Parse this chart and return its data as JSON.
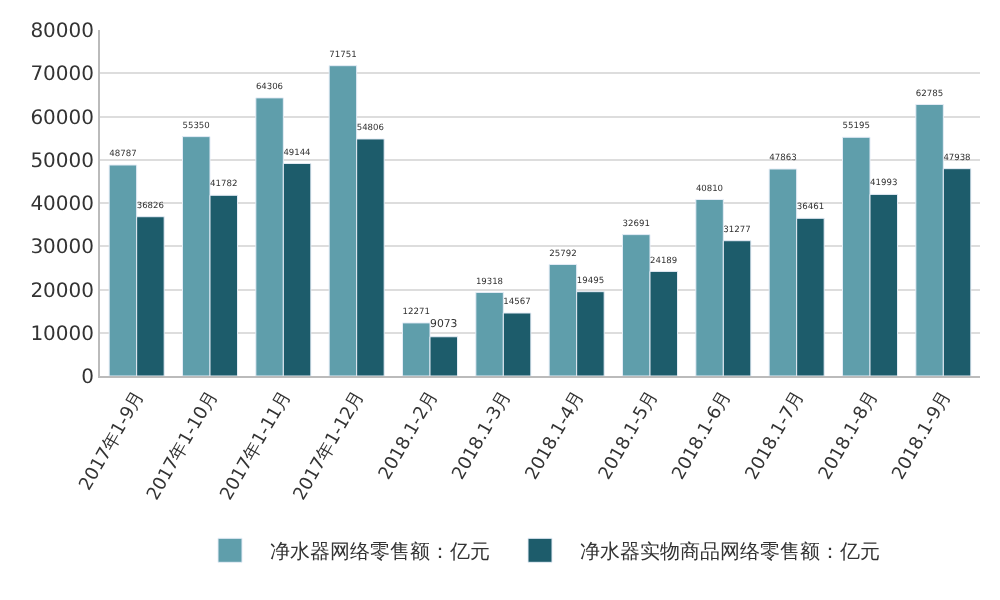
{
  "chart_data": {
    "type": "bar",
    "categories": [
      "2017年1-9月",
      "2017年1-10月",
      "2017年1-11月",
      "2017年1-12月",
      "2018.1-2月",
      "2018.1-3月",
      "2018.1-4月",
      "2018.1-5月",
      "2018.1-6月",
      "2018.1-7月",
      "2018.1-8月",
      "2018.1-9月"
    ],
    "series": [
      {
        "name": "净水器网络零售额：亿元",
        "color": "#5f9eab",
        "values": [
          48787,
          55350,
          64306,
          71751,
          12271,
          19318,
          25792,
          32691,
          40810,
          47863,
          55195,
          62785
        ]
      },
      {
        "name": "净水器实物商品网络零售额：亿元",
        "color": "#1d5c6b",
        "values": [
          36826,
          41782,
          49144,
          54806,
          9073,
          14567,
          19495,
          24189,
          31277,
          36461,
          41993,
          47938
        ]
      }
    ],
    "ylim": [
      0,
      80000
    ],
    "yticks": [
      0,
      10000,
      20000,
      30000,
      40000,
      50000,
      60000,
      70000,
      80000
    ],
    "grid": "y",
    "legend": "bottom",
    "data_labels": true
  }
}
